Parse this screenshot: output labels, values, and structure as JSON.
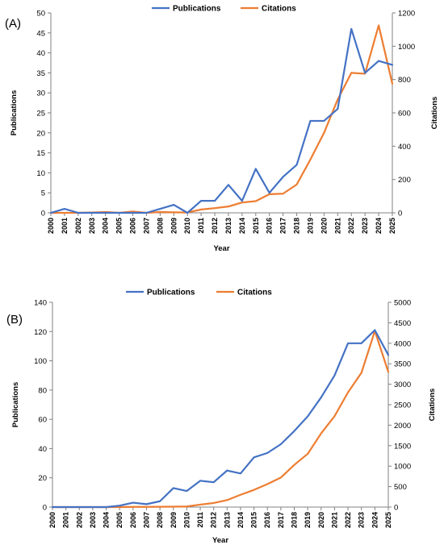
{
  "chart_data": [
    {
      "panel": "(A)",
      "type": "line",
      "x": [
        "2000",
        "2001",
        "2002",
        "2003",
        "2004",
        "2005",
        "2006",
        "2007",
        "2008",
        "2009",
        "2010",
        "2011",
        "2012",
        "2013",
        "2014",
        "2015",
        "2016",
        "2017",
        "2018",
        "2019",
        "2020",
        "2021",
        "2022",
        "2023",
        "2024",
        "2025"
      ],
      "xlabel": "Year",
      "ylabel": "Publications",
      "y2label": "Citations",
      "ylim": [
        0,
        50
      ],
      "y2lim": [
        0,
        1200
      ],
      "yticks": [
        0,
        5,
        10,
        15,
        20,
        25,
        30,
        35,
        40,
        45,
        50
      ],
      "y2ticks": [
        0,
        200,
        400,
        600,
        800,
        1000,
        1200
      ],
      "legend": "top-center",
      "series": [
        {
          "name": "Publications",
          "axis": "left",
          "color": "#4472C4",
          "values": [
            0,
            1,
            0,
            0,
            0,
            0,
            0,
            0,
            1,
            2,
            0,
            3,
            3,
            7,
            3,
            11,
            5,
            9,
            12,
            23,
            23,
            26,
            46,
            35,
            38,
            37
          ]
        },
        {
          "name": "Citations",
          "axis": "right",
          "color": "#ED7D31",
          "values": [
            0,
            0,
            0,
            2,
            5,
            0,
            8,
            0,
            5,
            3,
            2,
            20,
            28,
            38,
            62,
            70,
            112,
            115,
            170,
            320,
            480,
            680,
            840,
            835,
            1125,
            775
          ]
        }
      ]
    },
    {
      "panel": "(B)",
      "type": "line",
      "x": [
        "2000",
        "2001",
        "2002",
        "2003",
        "2004",
        "2005",
        "2006",
        "2007",
        "2008",
        "2009",
        "2010",
        "2011",
        "2012",
        "2013",
        "2014",
        "2015",
        "2016",
        "2017",
        "2018",
        "2019",
        "2020",
        "2021",
        "2022",
        "2023",
        "2024",
        "2025"
      ],
      "xlabel": "Year",
      "ylabel": "Publications",
      "y2label": "Citations",
      "ylim": [
        0,
        140
      ],
      "y2lim": [
        0,
        5000
      ],
      "yticks": [
        0,
        20,
        40,
        60,
        80,
        100,
        120,
        140
      ],
      "y2ticks": [
        0,
        500,
        1000,
        1500,
        2000,
        2500,
        3000,
        3500,
        4000,
        4500,
        5000
      ],
      "legend": "top-center",
      "series": [
        {
          "name": "Publications",
          "axis": "left",
          "color": "#4472C4",
          "values": [
            0,
            0,
            0,
            0,
            0,
            1,
            3,
            2,
            4,
            13,
            11,
            18,
            17,
            25,
            23,
            34,
            37,
            43,
            52,
            62,
            75,
            90,
            112,
            112,
            121,
            104
          ]
        },
        {
          "name": "Citations",
          "axis": "right",
          "color": "#ED7D31",
          "values": [
            0,
            0,
            0,
            0,
            0,
            0,
            5,
            5,
            8,
            10,
            15,
            60,
            100,
            170,
            300,
            420,
            560,
            720,
            1030,
            1300,
            1800,
            2220,
            2800,
            3280,
            4300,
            3300
          ]
        }
      ]
    }
  ]
}
